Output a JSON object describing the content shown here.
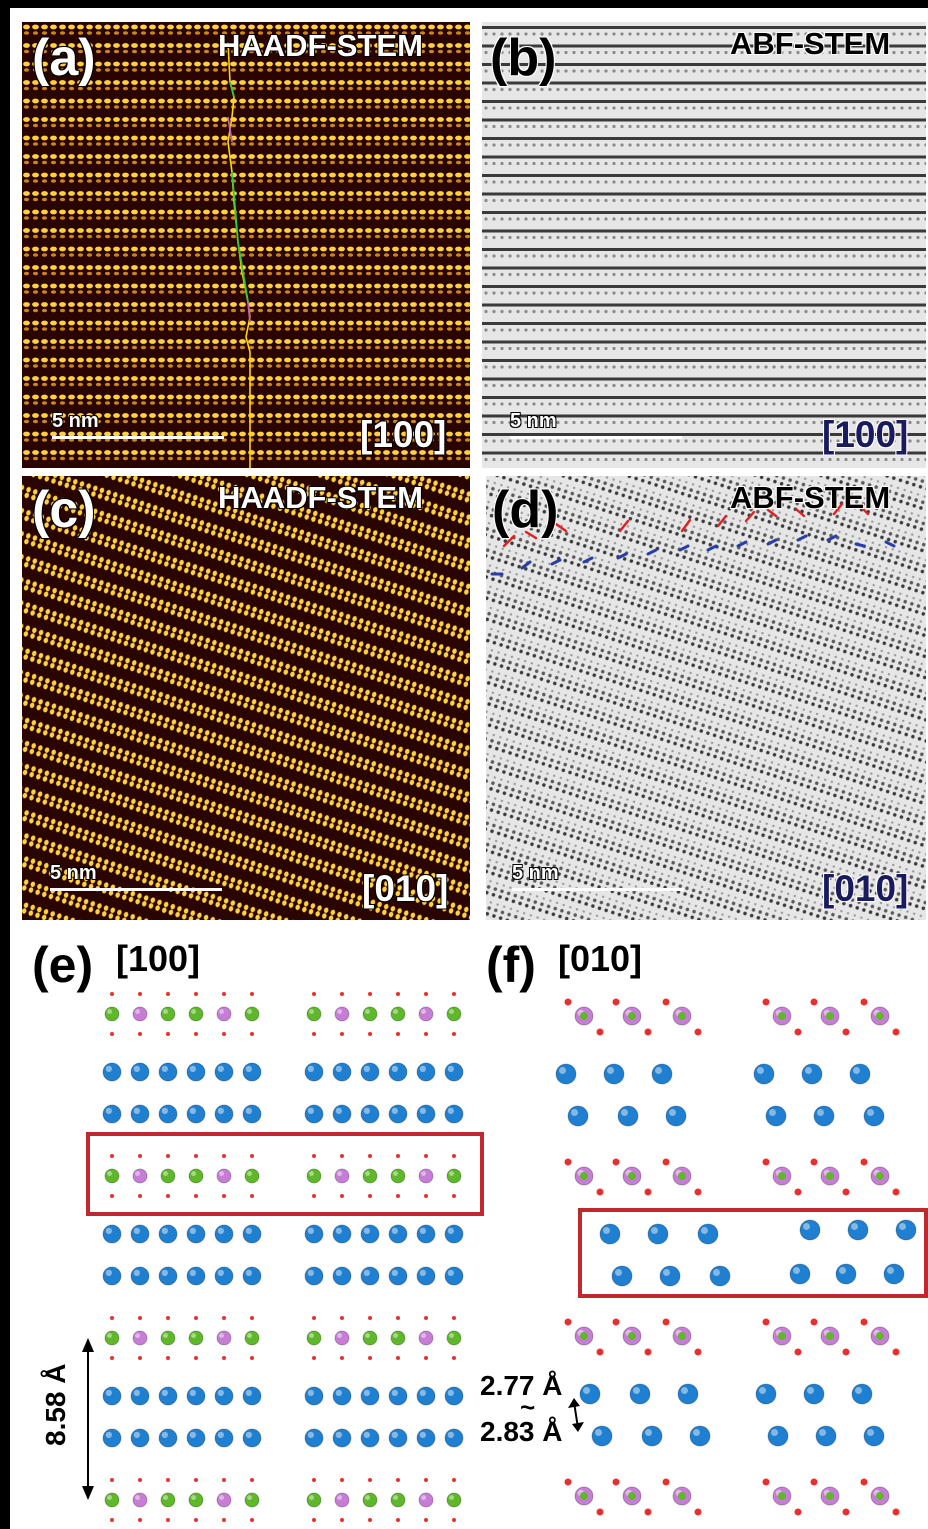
{
  "panels": {
    "a": {
      "letter": "(a)",
      "mode": "HAADF-STEM",
      "zone": "[100]",
      "scalebar": "5 nm"
    },
    "b": {
      "letter": "(b)",
      "mode": "ABF-STEM",
      "zone": "[100]",
      "scalebar": "5 nm"
    },
    "c": {
      "letter": "(c)",
      "mode": "HAADF-STEM",
      "zone": "[010]",
      "scalebar": "5 nm"
    },
    "d": {
      "letter": "(d)",
      "mode": "ABF-STEM",
      "zone": "[010]",
      "scalebar": "5 nm"
    },
    "e": {
      "letter": "(e)",
      "zone": "[100]",
      "spacing": "8.58 Å"
    },
    "f": {
      "letter": "(f)",
      "zone": "[010]",
      "spacing_top": "2.77 Å",
      "tilde": "~",
      "spacing_bottom": "2.83 Å"
    }
  },
  "colors": {
    "haadf_bg": "#2a0400",
    "haadf_atom": "#ffd23c",
    "abf_bg": "#e6e6e6",
    "abf_dark": "#3a3a3a",
    "atom_blue": "#1f7fd0",
    "atom_green": "#5fb82a",
    "atom_purple": "#c77dd6",
    "atom_red": "#e83030",
    "highlight_box": "#c0282d",
    "arrow_red": "#e02020",
    "arrow_blue": "#2a3ea8"
  }
}
